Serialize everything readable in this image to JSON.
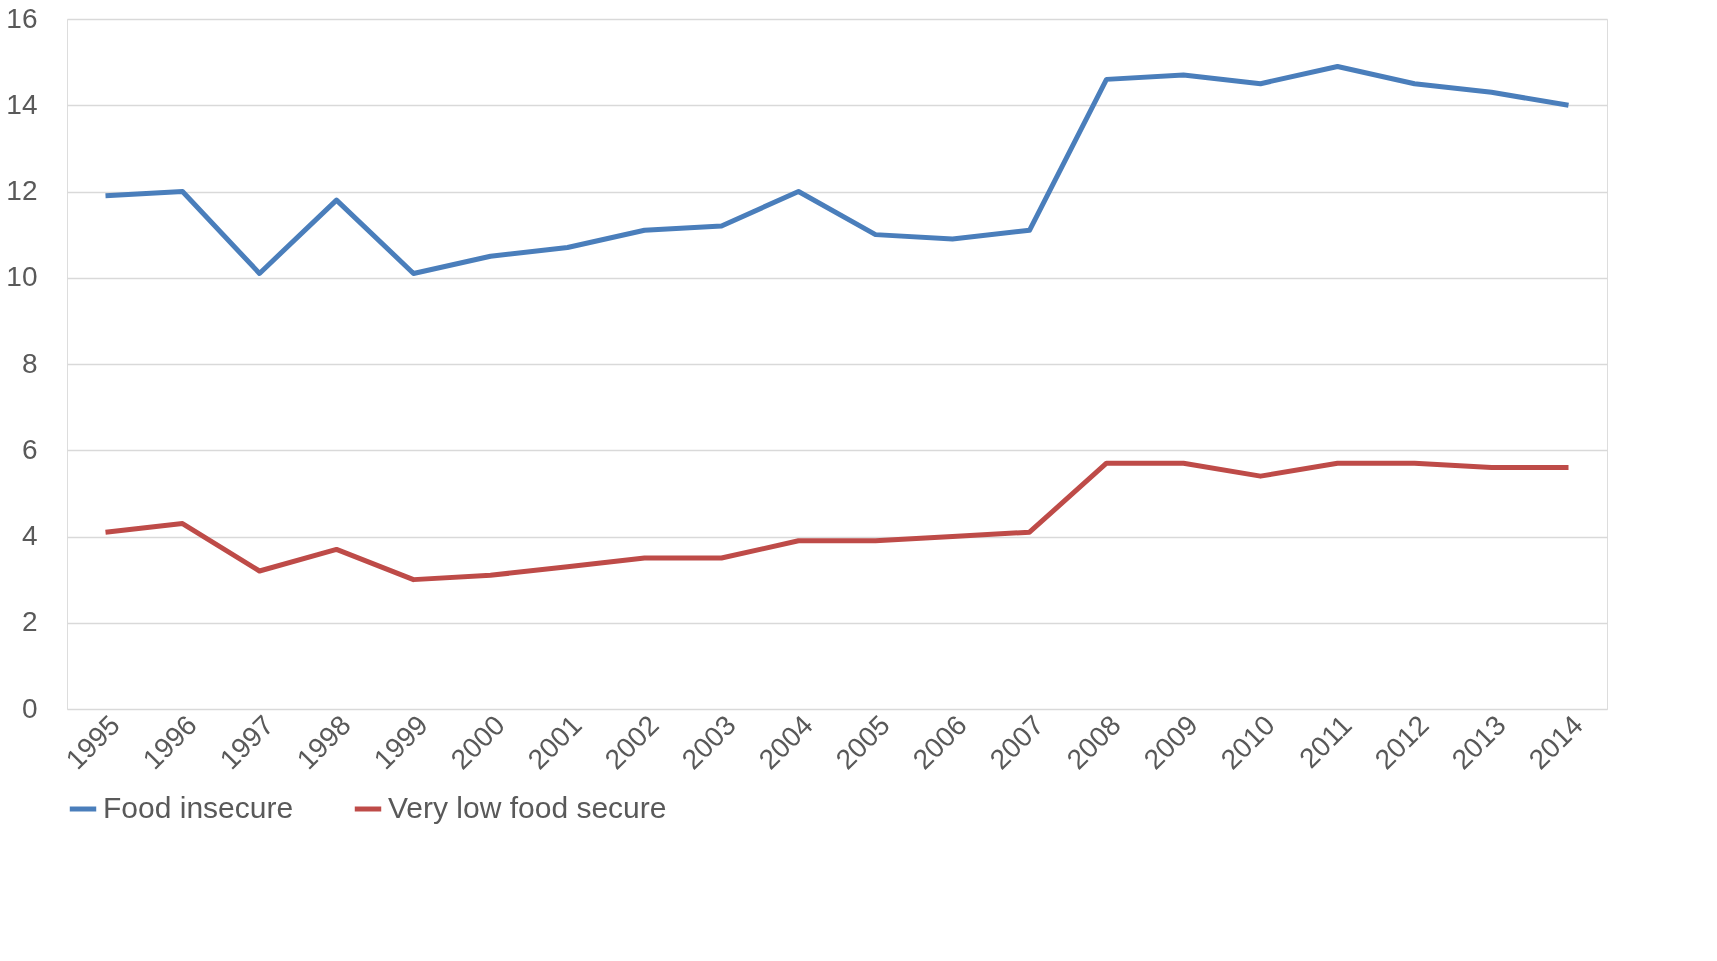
{
  "chart_data": {
    "type": "line",
    "categories": [
      "1995",
      "1996",
      "1997",
      "1998",
      "1999",
      "2000",
      "2001",
      "2002",
      "2003",
      "2004",
      "2005",
      "2006",
      "2007",
      "2008",
      "2009",
      "2010",
      "2011",
      "2012",
      "2013",
      "2014"
    ],
    "series": [
      {
        "name": "Food insecure",
        "color": "#4a7ebb",
        "values": [
          11.9,
          12.0,
          10.1,
          11.8,
          10.1,
          10.5,
          10.7,
          11.1,
          11.2,
          12.0,
          11.0,
          10.9,
          11.1,
          14.6,
          14.7,
          14.5,
          14.9,
          14.5,
          14.3,
          14.0
        ]
      },
      {
        "name": "Very low food secure",
        "color": "#be4b48",
        "values": [
          4.1,
          4.3,
          3.2,
          3.7,
          3.0,
          3.1,
          3.3,
          3.5,
          3.5,
          3.9,
          3.9,
          4.0,
          4.1,
          5.7,
          5.7,
          5.4,
          5.7,
          5.7,
          5.6,
          5.6
        ]
      }
    ],
    "ylim": [
      0,
      16
    ],
    "yticks": [
      0,
      2,
      4,
      6,
      8,
      10,
      12,
      14,
      16
    ],
    "grid": "y",
    "legend": "bottom",
    "marker": "none",
    "line_style": "solid"
  }
}
